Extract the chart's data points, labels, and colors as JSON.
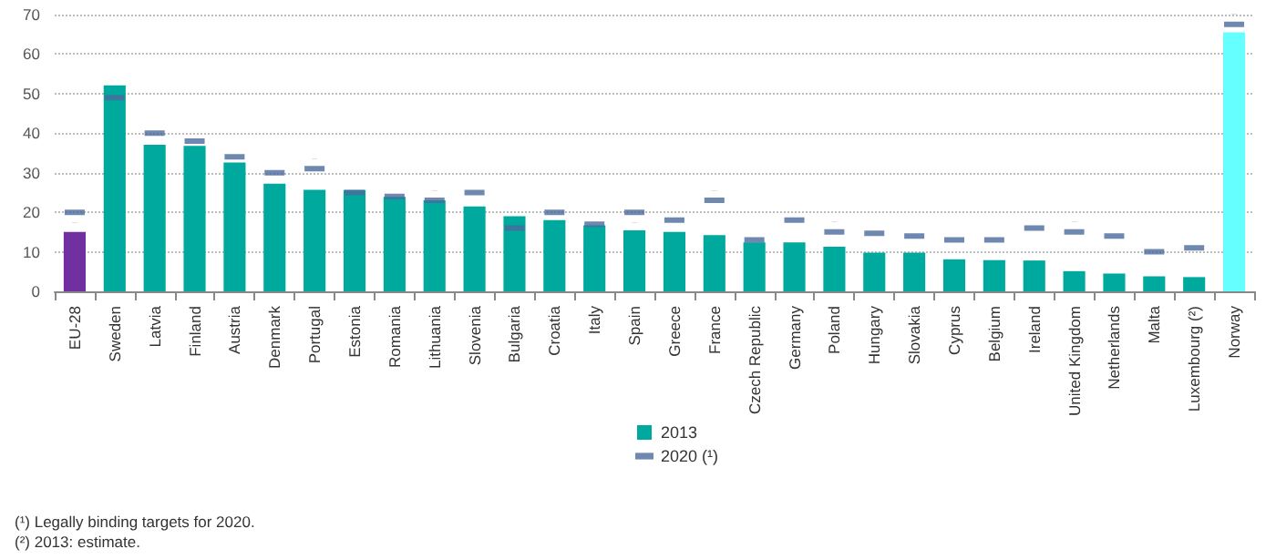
{
  "chart_data": {
    "type": "bar",
    "categories": [
      "EU-28",
      "Sweden",
      "Latvia",
      "Finland",
      "Austria",
      "Denmark",
      "Portugal",
      "Estonia",
      "Romania",
      "Lithuania",
      "Slovenia",
      "Bulgaria",
      "Croatia",
      "Italy",
      "Spain",
      "Greece",
      "France",
      "Czech Republic",
      "Germany",
      "Poland",
      "Hungary",
      "Slovakia",
      "Cyprus",
      "Belgium",
      "Ireland",
      "United Kingdom",
      "Netherlands",
      "Malta",
      "Luxembourg (²)",
      "Norway"
    ],
    "series": [
      {
        "name": "2013",
        "type": "bar",
        "color": "#00a99d",
        "colors": [
          "#7030a0",
          "#00a99d",
          "#00a99d",
          "#00a99d",
          "#00a99d",
          "#00a99d",
          "#00a99d",
          "#00a99d",
          "#00a99d",
          "#00a99d",
          "#00a99d",
          "#00a99d",
          "#00a99d",
          "#00a99d",
          "#00a99d",
          "#00a99d",
          "#00a99d",
          "#00a99d",
          "#00a99d",
          "#00a99d",
          "#00a99d",
          "#00a99d",
          "#00a99d",
          "#00a99d",
          "#00a99d",
          "#00a99d",
          "#00a99d",
          "#00a99d",
          "#00a99d",
          "#66ffff"
        ],
        "values": [
          15.0,
          52.1,
          37.1,
          36.8,
          32.6,
          27.2,
          25.7,
          25.6,
          23.9,
          23.0,
          21.5,
          19.0,
          18.0,
          16.7,
          15.4,
          15.0,
          14.2,
          12.4,
          12.4,
          11.3,
          9.8,
          9.8,
          8.1,
          7.9,
          7.8,
          5.1,
          4.5,
          3.8,
          3.6,
          65.5
        ]
      },
      {
        "name": "2020 (¹)",
        "type": "scatter",
        "color": "#4a6a9c",
        "values": [
          20,
          49,
          40,
          38,
          34,
          30,
          31,
          25,
          24,
          23,
          25,
          16,
          20,
          17,
          20,
          18,
          23,
          13,
          18,
          15,
          14.7,
          14,
          13,
          13,
          16,
          15,
          14,
          10,
          11,
          67.5
        ]
      }
    ],
    "ylim": [
      0,
      70
    ],
    "yticks": [
      0,
      10,
      20,
      30,
      40,
      50,
      60,
      70
    ],
    "grid": "y",
    "legend": "bottom",
    "annotations": [
      "(¹) Legally binding targets for 2020.",
      "(²) 2013: estimate."
    ]
  }
}
